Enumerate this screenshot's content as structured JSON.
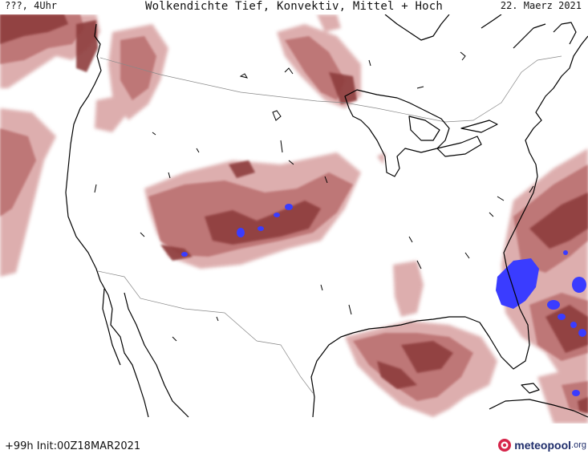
{
  "header": {
    "left": "???, 4Uhr",
    "title": "Wolkendichte  Tief, Konvektiv, Mittel + Hoch",
    "date": "22. Maerz 2021"
  },
  "footer": {
    "init": "+99h Init:00Z18MAR2021",
    "logo_name": "meteopool",
    "logo_tld": ".org"
  },
  "map": {
    "type": "cloud-density weather map",
    "region": "North America (United States, Mexico, Canada)",
    "legend_colors": {
      "light": "#dca8a8",
      "medium": "#b86a6a",
      "dense": "#8b3a3a",
      "convective": "#3344ff"
    }
  },
  "icons": [
    "meteopool-logo-icon"
  ]
}
